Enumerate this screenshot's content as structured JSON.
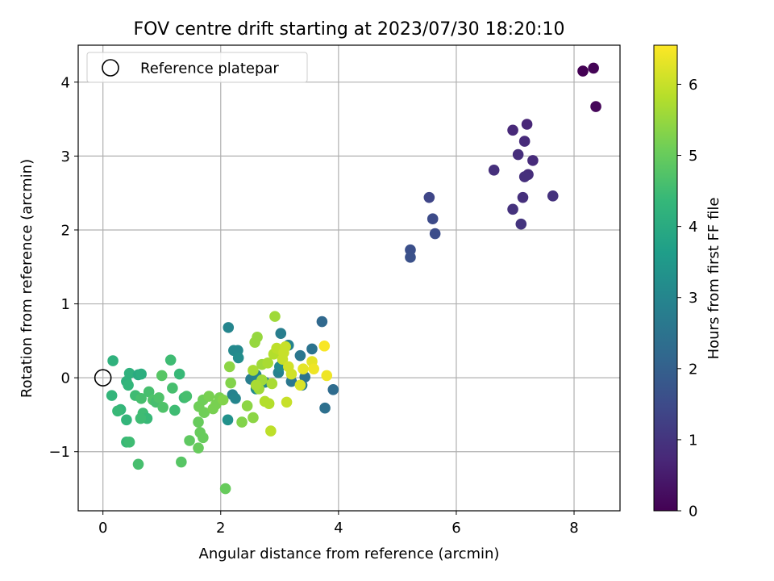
{
  "chart_data": {
    "type": "scatter",
    "title": "FOV centre drift starting at 2023/07/30 18:20:10",
    "xlabel": "Angular distance from reference (arcmin)",
    "ylabel": "Rotation from reference (arcmin)",
    "xlim": [
      -0.42,
      8.78
    ],
    "ylim": [
      -1.8,
      4.5
    ],
    "xticks": [
      0,
      2,
      4,
      6,
      8
    ],
    "yticks": [
      -1,
      0,
      1,
      2,
      3,
      4
    ],
    "grid": true,
    "legend": {
      "position": "top-left",
      "entries": [
        "Reference platepar"
      ]
    },
    "reference_point": {
      "x": 0,
      "y": 0
    },
    "colorbar": {
      "label": "Hours from first FF file",
      "range": [
        0,
        6.55
      ],
      "ticks": [
        0,
        1,
        2,
        3,
        4,
        5,
        6
      ],
      "colormap": "viridis"
    },
    "points": [
      {
        "x": 8.15,
        "y": 4.15,
        "c": 0.0
      },
      {
        "x": 8.33,
        "y": 4.19,
        "c": 0.05
      },
      {
        "x": 8.37,
        "y": 3.67,
        "c": 0.1
      },
      {
        "x": 7.2,
        "y": 3.43,
        "c": 0.7
      },
      {
        "x": 6.96,
        "y": 3.35,
        "c": 0.75
      },
      {
        "x": 7.16,
        "y": 3.2,
        "c": 0.8
      },
      {
        "x": 7.05,
        "y": 3.02,
        "c": 0.85
      },
      {
        "x": 7.3,
        "y": 2.94,
        "c": 0.8
      },
      {
        "x": 6.64,
        "y": 2.81,
        "c": 0.9
      },
      {
        "x": 7.22,
        "y": 2.75,
        "c": 0.85
      },
      {
        "x": 7.16,
        "y": 2.72,
        "c": 0.9
      },
      {
        "x": 7.64,
        "y": 2.46,
        "c": 0.95
      },
      {
        "x": 7.13,
        "y": 2.44,
        "c": 0.9
      },
      {
        "x": 6.96,
        "y": 2.28,
        "c": 0.95
      },
      {
        "x": 7.1,
        "y": 2.08,
        "c": 1.0
      },
      {
        "x": 5.54,
        "y": 2.44,
        "c": 1.4
      },
      {
        "x": 5.6,
        "y": 2.15,
        "c": 1.5
      },
      {
        "x": 5.64,
        "y": 1.95,
        "c": 1.55
      },
      {
        "x": 5.22,
        "y": 1.73,
        "c": 1.6
      },
      {
        "x": 5.22,
        "y": 1.63,
        "c": 1.65
      },
      {
        "x": 3.72,
        "y": 0.76,
        "c": 2.2
      },
      {
        "x": 3.91,
        "y": -0.16,
        "c": 2.3
      },
      {
        "x": 3.77,
        "y": -0.41,
        "c": 2.4
      },
      {
        "x": 3.55,
        "y": 0.39,
        "c": 2.5
      },
      {
        "x": 3.35,
        "y": 0.3,
        "c": 2.6
      },
      {
        "x": 3.38,
        "y": -0.1,
        "c": 2.7
      },
      {
        "x": 3.43,
        "y": 0.01,
        "c": 2.5
      },
      {
        "x": 3.2,
        "y": -0.05,
        "c": 2.6
      },
      {
        "x": 3.02,
        "y": 0.6,
        "c": 2.8
      },
      {
        "x": 3.15,
        "y": 0.44,
        "c": 2.9
      },
      {
        "x": 2.13,
        "y": 0.68,
        "c": 3.0
      },
      {
        "x": 2.22,
        "y": 0.37,
        "c": 3.1
      },
      {
        "x": 2.29,
        "y": 0.37,
        "c": 3.1
      },
      {
        "x": 2.3,
        "y": 0.27,
        "c": 3.2
      },
      {
        "x": 2.2,
        "y": -0.23,
        "c": 2.9
      },
      {
        "x": 2.25,
        "y": -0.28,
        "c": 3.0
      },
      {
        "x": 2.12,
        "y": -0.57,
        "c": 3.3
      },
      {
        "x": 2.51,
        "y": -0.02,
        "c": 2.8
      },
      {
        "x": 2.6,
        "y": 0.04,
        "c": 2.9
      },
      {
        "x": 2.75,
        "y": -0.06,
        "c": 3.0
      },
      {
        "x": 2.98,
        "y": 0.07,
        "c": 2.9
      },
      {
        "x": 3.0,
        "y": 0.15,
        "c": 3.1
      },
      {
        "x": 2.6,
        "y": -0.15,
        "c": 3.2
      },
      {
        "x": 0.17,
        "y": 0.23,
        "c": 4.2
      },
      {
        "x": 0.15,
        "y": -0.24,
        "c": 4.3
      },
      {
        "x": 0.3,
        "y": -0.43,
        "c": 4.3
      },
      {
        "x": 0.25,
        "y": -0.45,
        "c": 4.4
      },
      {
        "x": 0.4,
        "y": -0.05,
        "c": 4.2
      },
      {
        "x": 0.45,
        "y": 0.06,
        "c": 4.2
      },
      {
        "x": 0.43,
        "y": -0.1,
        "c": 4.3
      },
      {
        "x": 0.6,
        "y": 0.04,
        "c": 4.0
      },
      {
        "x": 0.65,
        "y": 0.05,
        "c": 4.1
      },
      {
        "x": 0.55,
        "y": -0.24,
        "c": 4.5
      },
      {
        "x": 0.65,
        "y": -0.28,
        "c": 4.6
      },
      {
        "x": 0.68,
        "y": -0.48,
        "c": 4.5
      },
      {
        "x": 0.75,
        "y": -0.55,
        "c": 4.4
      },
      {
        "x": 0.64,
        "y": -0.55,
        "c": 4.5
      },
      {
        "x": 0.4,
        "y": -0.57,
        "c": 4.3
      },
      {
        "x": 0.4,
        "y": -0.87,
        "c": 4.4
      },
      {
        "x": 0.45,
        "y": -0.87,
        "c": 4.5
      },
      {
        "x": 0.6,
        "y": -1.17,
        "c": 4.6
      },
      {
        "x": 0.78,
        "y": -0.19,
        "c": 4.6
      },
      {
        "x": 0.85,
        "y": -0.3,
        "c": 4.7
      },
      {
        "x": 0.9,
        "y": -0.33,
        "c": 4.6
      },
      {
        "x": 0.95,
        "y": -0.27,
        "c": 4.7
      },
      {
        "x": 1.0,
        "y": 0.03,
        "c": 4.8
      },
      {
        "x": 1.02,
        "y": -0.4,
        "c": 4.7
      },
      {
        "x": 1.15,
        "y": 0.24,
        "c": 4.5
      },
      {
        "x": 1.18,
        "y": -0.14,
        "c": 4.6
      },
      {
        "x": 1.22,
        "y": -0.44,
        "c": 4.5
      },
      {
        "x": 1.3,
        "y": 0.05,
        "c": 4.4
      },
      {
        "x": 1.38,
        "y": -0.27,
        "c": 4.5
      },
      {
        "x": 1.42,
        "y": -0.25,
        "c": 4.6
      },
      {
        "x": 1.33,
        "y": -1.14,
        "c": 4.8
      },
      {
        "x": 1.47,
        "y": -0.85,
        "c": 4.9
      },
      {
        "x": 1.62,
        "y": -0.95,
        "c": 5.0
      },
      {
        "x": 1.65,
        "y": -0.74,
        "c": 5.0
      },
      {
        "x": 1.7,
        "y": -0.81,
        "c": 5.0
      },
      {
        "x": 1.62,
        "y": -0.6,
        "c": 5.0
      },
      {
        "x": 1.63,
        "y": -0.39,
        "c": 5.1
      },
      {
        "x": 1.7,
        "y": -0.3,
        "c": 5.1
      },
      {
        "x": 1.72,
        "y": -0.47,
        "c": 5.1
      },
      {
        "x": 1.8,
        "y": -0.25,
        "c": 5.2
      },
      {
        "x": 1.87,
        "y": -0.42,
        "c": 5.2
      },
      {
        "x": 1.92,
        "y": -0.36,
        "c": 5.2
      },
      {
        "x": 1.98,
        "y": -0.27,
        "c": 5.2
      },
      {
        "x": 2.04,
        "y": -0.3,
        "c": 5.3
      },
      {
        "x": 2.08,
        "y": -1.5,
        "c": 5.0
      },
      {
        "x": 2.15,
        "y": 0.15,
        "c": 5.4
      },
      {
        "x": 2.17,
        "y": -0.07,
        "c": 5.3
      },
      {
        "x": 2.36,
        "y": -0.6,
        "c": 5.3
      },
      {
        "x": 2.45,
        "y": -0.38,
        "c": 5.4
      },
      {
        "x": 2.55,
        "y": -0.54,
        "c": 5.4
      },
      {
        "x": 2.58,
        "y": 0.48,
        "c": 5.5
      },
      {
        "x": 2.62,
        "y": 0.55,
        "c": 5.5
      },
      {
        "x": 2.65,
        "y": -0.15,
        "c": 5.6
      },
      {
        "x": 2.7,
        "y": -0.03,
        "c": 5.6
      },
      {
        "x": 2.55,
        "y": 0.1,
        "c": 5.7
      },
      {
        "x": 2.6,
        "y": -0.1,
        "c": 5.7
      },
      {
        "x": 2.7,
        "y": 0.18,
        "c": 5.6
      },
      {
        "x": 2.8,
        "y": 0.2,
        "c": 5.7
      },
      {
        "x": 2.75,
        "y": -0.32,
        "c": 5.8
      },
      {
        "x": 2.82,
        "y": -0.35,
        "c": 5.8
      },
      {
        "x": 2.85,
        "y": -0.72,
        "c": 5.9
      },
      {
        "x": 2.87,
        "y": -0.08,
        "c": 5.7
      },
      {
        "x": 2.9,
        "y": 0.32,
        "c": 5.8
      },
      {
        "x": 2.92,
        "y": 0.83,
        "c": 5.6
      },
      {
        "x": 2.95,
        "y": 0.4,
        "c": 5.9
      },
      {
        "x": 3.0,
        "y": 0.38,
        "c": 5.9
      },
      {
        "x": 3.05,
        "y": 0.25,
        "c": 6.0
      },
      {
        "x": 3.07,
        "y": 0.34,
        "c": 6.0
      },
      {
        "x": 3.1,
        "y": 0.42,
        "c": 6.0
      },
      {
        "x": 3.12,
        "y": -0.33,
        "c": 6.0
      },
      {
        "x": 3.15,
        "y": 0.15,
        "c": 6.1
      },
      {
        "x": 3.2,
        "y": 0.05,
        "c": 6.1
      },
      {
        "x": 3.35,
        "y": -0.1,
        "c": 6.2
      },
      {
        "x": 3.4,
        "y": 0.12,
        "c": 6.3
      },
      {
        "x": 3.55,
        "y": 0.22,
        "c": 6.3
      },
      {
        "x": 3.58,
        "y": 0.12,
        "c": 6.4
      },
      {
        "x": 3.76,
        "y": 0.43,
        "c": 6.5
      },
      {
        "x": 3.8,
        "y": 0.03,
        "c": 6.4
      }
    ]
  }
}
